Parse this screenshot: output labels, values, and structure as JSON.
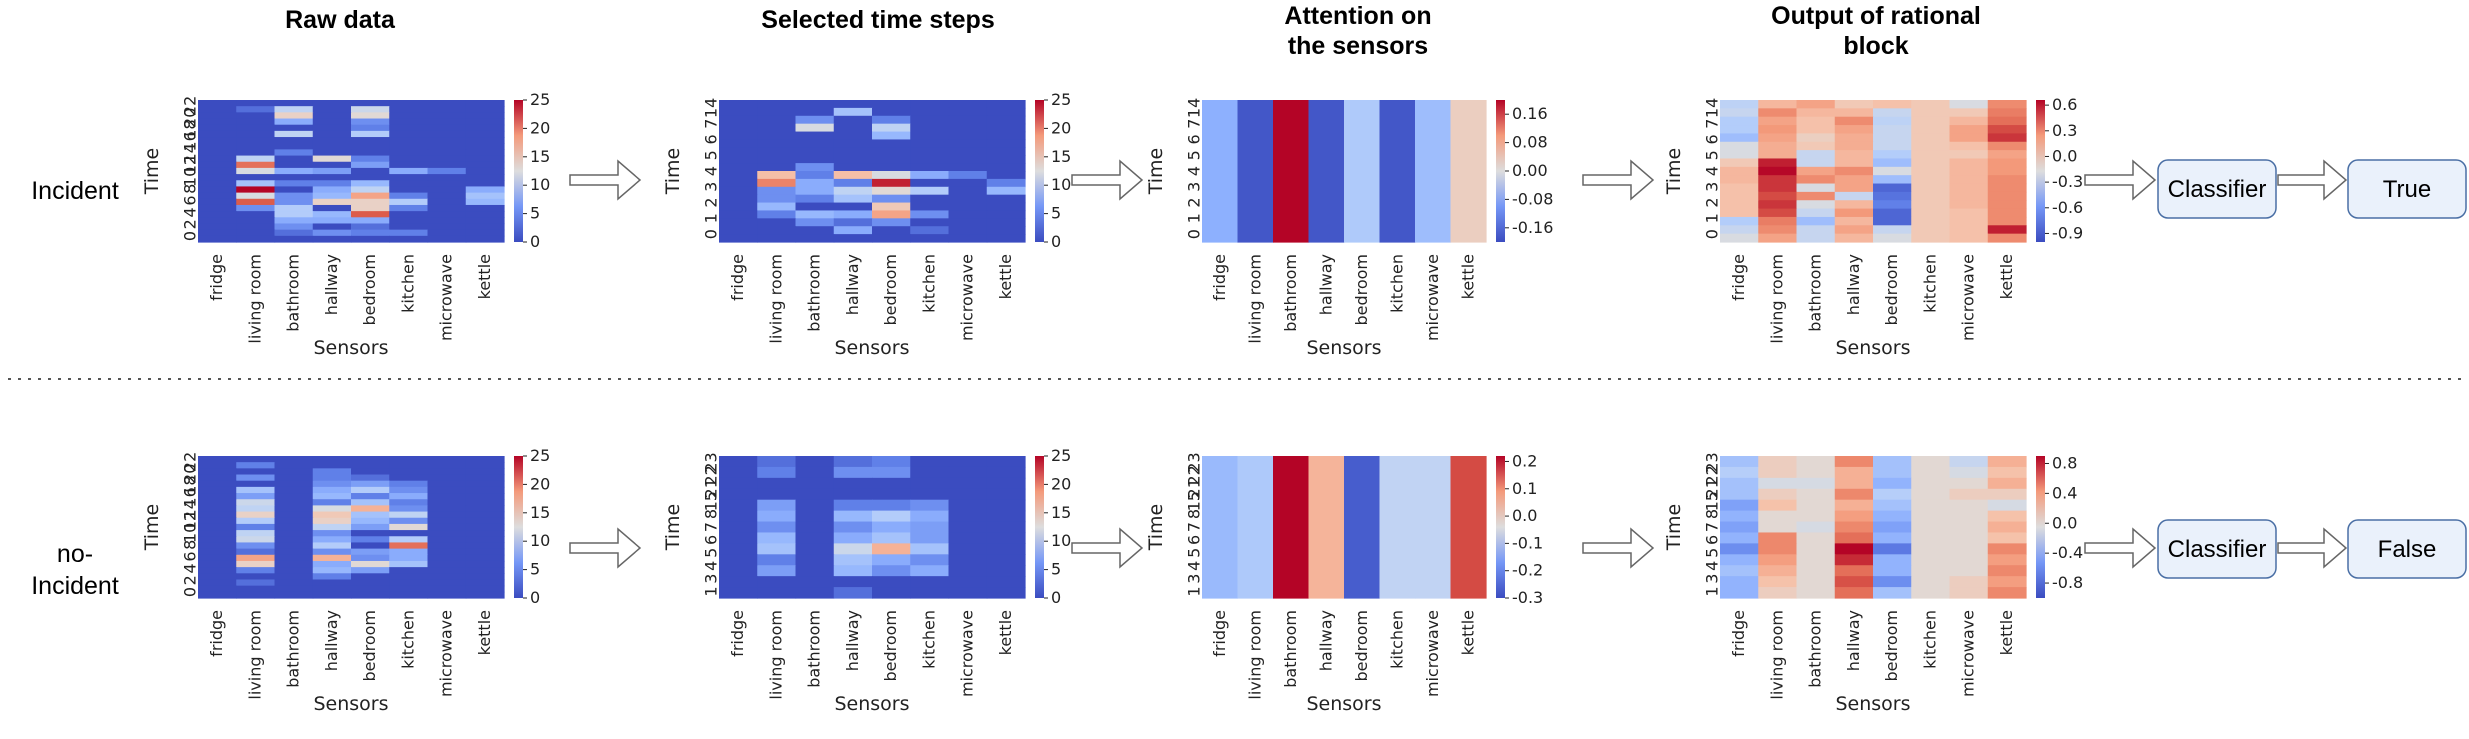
{
  "columns": {
    "raw": "Raw data",
    "selected": "Selected time steps",
    "attention": "Attention on the sensors",
    "output": "Output of rational block"
  },
  "rows": [
    {
      "label": "Incident",
      "result": "True"
    },
    {
      "label": "no-Incident",
      "result": "False"
    }
  ],
  "classifier_label": "Classifier",
  "sensors": [
    "fridge",
    "living room",
    "bathroom",
    "hallway",
    "bedroom",
    "kitchen",
    "microwave",
    "kettle"
  ],
  "x_axis_label": "Sensors",
  "y_axis_label": "Time",
  "colormap": {
    "name": "coolwarm",
    "low": "#3b4cc0",
    "mid": "#dddddd",
    "high": "#b40426"
  },
  "arrow_color": "#666666",
  "box_fill": "#eaf1fb",
  "box_stroke": "#4a6fa5",
  "divider_color": "#555555",
  "chart_data": [
    {
      "id": "inc-raw",
      "type": "heatmap",
      "vmin": 0,
      "vmax": 25,
      "yticks": [
        "0",
        "2",
        "4",
        "6",
        "8",
        "10",
        "12",
        "14",
        "16",
        "18",
        "20",
        "22"
      ],
      "cbar_ticks": [
        "0",
        "5",
        "10",
        "15",
        "20",
        "25"
      ],
      "values": [
        [
          0,
          0,
          0,
          0,
          0,
          0,
          0,
          0
        ],
        [
          0,
          2,
          10,
          0,
          11,
          0,
          0,
          0
        ],
        [
          0,
          0,
          14,
          0,
          13,
          0,
          0,
          0
        ],
        [
          0,
          0,
          6,
          0,
          4,
          0,
          0,
          0
        ],
        [
          0,
          0,
          0,
          0,
          3,
          0,
          0,
          0
        ],
        [
          0,
          0,
          10,
          0,
          9,
          0,
          0,
          0
        ],
        [
          0,
          0,
          0,
          0,
          0,
          0,
          0,
          0
        ],
        [
          0,
          0,
          0,
          0,
          0,
          0,
          0,
          0
        ],
        [
          0,
          0,
          3,
          0,
          0,
          0,
          0,
          0
        ],
        [
          0,
          10,
          0,
          13,
          3,
          0,
          0,
          0
        ],
        [
          0,
          21,
          0,
          0,
          5,
          0,
          0,
          0
        ],
        [
          0,
          12,
          6,
          5,
          0,
          6,
          3,
          0
        ],
        [
          0,
          0,
          0,
          0,
          0,
          0,
          0,
          0
        ],
        [
          0,
          8,
          3,
          3,
          7,
          0,
          0,
          0
        ],
        [
          0,
          25,
          0,
          6,
          10,
          0,
          0,
          6
        ],
        [
          0,
          12,
          4,
          7,
          18,
          3,
          0,
          8
        ],
        [
          0,
          22,
          4,
          14,
          14,
          9,
          0,
          7
        ],
        [
          0,
          4,
          9,
          0,
          14,
          3,
          0,
          0
        ],
        [
          0,
          0,
          9,
          7,
          22,
          0,
          0,
          0
        ],
        [
          0,
          0,
          6,
          6,
          6,
          0,
          0,
          0
        ],
        [
          0,
          0,
          4,
          0,
          2,
          0,
          0,
          0
        ],
        [
          0,
          0,
          2,
          4,
          3,
          3,
          0,
          0
        ],
        [
          0,
          0,
          0,
          0,
          0,
          0,
          0,
          0
        ]
      ]
    },
    {
      "id": "inc-sel",
      "type": "heatmap",
      "vmin": 0,
      "vmax": 25,
      "yticks": [
        "0",
        "1",
        "2",
        "3",
        "4",
        "5",
        "6",
        "7",
        "14"
      ],
      "cbar_ticks": [
        "0",
        "5",
        "10",
        "15",
        "20",
        "25"
      ],
      "values": [
        [
          0,
          0,
          0,
          0,
          0,
          0,
          0,
          0
        ],
        [
          0,
          0,
          0,
          8,
          0,
          0,
          0,
          0
        ],
        [
          0,
          0,
          4,
          0,
          3,
          0,
          0,
          0
        ],
        [
          0,
          0,
          12,
          0,
          10,
          0,
          0,
          0
        ],
        [
          0,
          0,
          0,
          0,
          7,
          0,
          0,
          0
        ],
        [
          0,
          0,
          0,
          0,
          0,
          0,
          0,
          0
        ],
        [
          0,
          0,
          0,
          0,
          0,
          0,
          0,
          0
        ],
        [
          0,
          0,
          0,
          0,
          0,
          0,
          0,
          0
        ],
        [
          0,
          0,
          4,
          0,
          0,
          0,
          0,
          0
        ],
        [
          0,
          16,
          3,
          16,
          12,
          6,
          3,
          0
        ],
        [
          0,
          20,
          6,
          3,
          24,
          0,
          0,
          3
        ],
        [
          0,
          4,
          6,
          10,
          13,
          9,
          0,
          7
        ],
        [
          0,
          4,
          3,
          8,
          4,
          0,
          0,
          0
        ],
        [
          0,
          7,
          0,
          0,
          15,
          0,
          0,
          0
        ],
        [
          0,
          3,
          7,
          6,
          18,
          4,
          0,
          0
        ],
        [
          0,
          0,
          4,
          2,
          4,
          0,
          0,
          0
        ],
        [
          0,
          0,
          0,
          6,
          0,
          2,
          0,
          0
        ],
        [
          0,
          0,
          0,
          0,
          0,
          0,
          0,
          0
        ]
      ]
    },
    {
      "id": "inc-att",
      "type": "heatmap",
      "vmin": -0.2,
      "vmax": 0.2,
      "yticks": [
        "0",
        "1",
        "2",
        "3",
        "4",
        "5",
        "6",
        "7",
        "14"
      ],
      "cbar_ticks": [
        "0.16",
        "0.08",
        "0.00",
        "-0.08",
        "-0.16"
      ],
      "cbar_tick_values": [
        0.16,
        0.08,
        0.0,
        -0.08,
        -0.16
      ],
      "values": [
        [
          -0.1,
          -0.19,
          0.2,
          -0.19,
          -0.06,
          -0.19,
          -0.08,
          0.03
        ]
      ]
    },
    {
      "id": "inc-out",
      "type": "heatmap",
      "vmin": -1.0,
      "vmax": 0.66,
      "yticks": [
        "0",
        "1",
        "2",
        "3",
        "4",
        "5",
        "6",
        "7",
        "14"
      ],
      "cbar_ticks": [
        "0.6",
        "0.3",
        "0.0",
        "-0.3",
        "-0.6",
        "-0.9"
      ],
      "cbar_tick_values": [
        0.6,
        0.3,
        0.0,
        -0.3,
        -0.6,
        -0.9
      ],
      "values": [
        [
          -0.35,
          0.1,
          0.2,
          0.0,
          0.05,
          0.0,
          -0.2,
          0.3
        ],
        [
          -0.3,
          0.3,
          0.1,
          0.1,
          -0.3,
          0.0,
          0.0,
          0.35
        ],
        [
          -0.4,
          0.2,
          0.05,
          0.3,
          -0.35,
          0.0,
          0.1,
          0.4
        ],
        [
          -0.4,
          0.25,
          0.05,
          0.2,
          -0.3,
          0.0,
          0.2,
          0.5
        ],
        [
          -0.5,
          0.2,
          -0.05,
          0.15,
          -0.3,
          0.0,
          0.2,
          0.55
        ],
        [
          -0.2,
          0.15,
          0.0,
          0.15,
          -0.3,
          0.0,
          0.05,
          0.3
        ],
        [
          -0.2,
          0.15,
          -0.3,
          0.1,
          -0.4,
          0.0,
          0.0,
          0.2
        ],
        [
          0.0,
          0.6,
          -0.3,
          0.1,
          -0.5,
          0.0,
          0.1,
          0.25
        ],
        [
          0.1,
          0.65,
          0.2,
          0.3,
          -0.2,
          0.0,
          0.1,
          0.25
        ],
        [
          0.1,
          0.55,
          0.3,
          0.2,
          -0.5,
          0.0,
          0.1,
          0.3
        ],
        [
          0.05,
          0.55,
          -0.2,
          0.2,
          -0.9,
          0.0,
          0.1,
          0.3
        ],
        [
          0.05,
          0.5,
          0.3,
          -0.3,
          -0.85,
          0.0,
          0.1,
          0.3
        ],
        [
          0.05,
          0.55,
          -0.2,
          0.1,
          -0.8,
          0.0,
          0.1,
          0.3
        ],
        [
          0.05,
          0.5,
          -0.3,
          0.25,
          -0.9,
          0.0,
          0.05,
          0.3
        ],
        [
          -0.4,
          0.35,
          -0.5,
          0.1,
          -0.9,
          0.0,
          0.05,
          0.3
        ],
        [
          -0.3,
          0.3,
          -0.3,
          0.2,
          -0.3,
          0.0,
          0.05,
          0.6
        ],
        [
          -0.2,
          0.2,
          -0.3,
          0.1,
          -0.2,
          0.0,
          0.05,
          0.3
        ]
      ]
    },
    {
      "id": "noinc-raw",
      "type": "heatmap",
      "vmin": 0,
      "vmax": 25,
      "yticks": [
        "0",
        "2",
        "4",
        "6",
        "8",
        "10",
        "12",
        "14",
        "16",
        "18",
        "20",
        "22"
      ],
      "cbar_ticks": [
        "0",
        "5",
        "10",
        "15",
        "20",
        "25"
      ],
      "values": [
        [
          0,
          0,
          0,
          0,
          0,
          0,
          0,
          0
        ],
        [
          0,
          3,
          0,
          0,
          0,
          0,
          0,
          0
        ],
        [
          0,
          0,
          0,
          3,
          0,
          0,
          0,
          0
        ],
        [
          0,
          4,
          0,
          3,
          2,
          0,
          0,
          0
        ],
        [
          0,
          0,
          0,
          4,
          5,
          3,
          0,
          0
        ],
        [
          0,
          8,
          0,
          6,
          9,
          4,
          0,
          0
        ],
        [
          0,
          5,
          0,
          7,
          3,
          6,
          0,
          0
        ],
        [
          0,
          11,
          0,
          3,
          8,
          3,
          0,
          0
        ],
        [
          0,
          10,
          0,
          12,
          17,
          4,
          0,
          0
        ],
        [
          0,
          14,
          0,
          15,
          8,
          10,
          0,
          0
        ],
        [
          0,
          9,
          0,
          14,
          7,
          4,
          0,
          0
        ],
        [
          0,
          3,
          0,
          10,
          5,
          13,
          0,
          0
        ],
        [
          0,
          10,
          0,
          4,
          0,
          0,
          0,
          0
        ],
        [
          0,
          11,
          0,
          6,
          3,
          9,
          0,
          0
        ],
        [
          0,
          4,
          0,
          9,
          0,
          21,
          0,
          0
        ],
        [
          0,
          2,
          0,
          4,
          5,
          6,
          0,
          0
        ],
        [
          0,
          18,
          0,
          17,
          4,
          6,
          0,
          0
        ],
        [
          0,
          14,
          0,
          6,
          13,
          8,
          0,
          0
        ],
        [
          0,
          3,
          0,
          7,
          5,
          0,
          0,
          0
        ],
        [
          0,
          0,
          0,
          3,
          0,
          0,
          0,
          0
        ],
        [
          0,
          2,
          0,
          0,
          0,
          0,
          0,
          0
        ],
        [
          0,
          0,
          0,
          0,
          0,
          0,
          0,
          0
        ],
        [
          0,
          0,
          0,
          0,
          0,
          0,
          0,
          0
        ]
      ]
    },
    {
      "id": "noinc-sel",
      "type": "heatmap",
      "vmin": 0,
      "vmax": 25,
      "yticks": [
        "1",
        "3",
        "4",
        "5",
        "6",
        "7",
        "8",
        "15",
        "21",
        "22",
        "23"
      ],
      "cbar_ticks": [
        "0",
        "5",
        "10",
        "15",
        "20",
        "25"
      ],
      "values": [
        [
          0,
          2,
          0,
          2,
          3,
          0,
          0,
          0
        ],
        [
          0,
          3,
          0,
          4,
          4,
          0,
          0,
          0
        ],
        [
          0,
          0,
          0,
          0,
          0,
          0,
          0,
          0
        ],
        [
          0,
          0,
          0,
          0,
          0,
          0,
          0,
          0
        ],
        [
          0,
          5,
          0,
          3,
          3,
          4,
          0,
          0
        ],
        [
          0,
          6,
          0,
          7,
          9,
          6,
          0,
          0
        ],
        [
          0,
          4,
          0,
          4,
          6,
          5,
          0,
          0
        ],
        [
          0,
          7,
          0,
          6,
          8,
          5,
          0,
          0
        ],
        [
          0,
          8,
          0,
          11,
          17,
          8,
          0,
          0
        ],
        [
          0,
          3,
          0,
          8,
          6,
          4,
          0,
          0
        ],
        [
          0,
          5,
          0,
          7,
          4,
          6,
          0,
          0
        ],
        [
          0,
          0,
          0,
          0,
          0,
          0,
          0,
          0
        ],
        [
          0,
          0,
          0,
          2,
          0,
          0,
          0,
          0
        ]
      ]
    },
    {
      "id": "noinc-att",
      "type": "heatmap",
      "vmin": -0.3,
      "vmax": 0.22,
      "yticks": [
        "1",
        "3",
        "4",
        "5",
        "6",
        "7",
        "8",
        "15",
        "21",
        "22",
        "23"
      ],
      "cbar_ticks": [
        "0.2",
        "0.1",
        "0.0",
        "-0.1",
        "-0.2",
        "-0.3"
      ],
      "cbar_tick_values": [
        0.2,
        0.1,
        0.0,
        -0.1,
        -0.2,
        -0.3
      ],
      "values": [
        [
          -0.15,
          -0.12,
          0.22,
          0.05,
          -0.28,
          -0.09,
          -0.09,
          0.17
        ]
      ]
    },
    {
      "id": "noinc-out",
      "type": "heatmap",
      "vmin": -1.0,
      "vmax": 0.9,
      "yticks": [
        "1",
        "3",
        "4",
        "5",
        "6",
        "7",
        "8",
        "15",
        "21",
        "22",
        "23"
      ],
      "cbar_ticks": [
        "0.8",
        "0.4",
        "0.0",
        "-0.4",
        "-0.8"
      ],
      "cbar_tick_values": [
        0.8,
        0.4,
        0.0,
        -0.4,
        -0.8
      ],
      "values": [
        [
          -0.4,
          0.1,
          0.0,
          0.5,
          -0.4,
          0.0,
          -0.2,
          0.3
        ],
        [
          -0.3,
          0.1,
          0.0,
          0.3,
          -0.4,
          0.0,
          -0.1,
          0.2
        ],
        [
          -0.4,
          -0.1,
          -0.1,
          0.3,
          -0.5,
          0.0,
          0.0,
          0.3
        ],
        [
          -0.4,
          0.1,
          0.0,
          0.5,
          -0.3,
          0.0,
          0.1,
          0.1
        ],
        [
          -0.6,
          0.2,
          0.0,
          0.3,
          -0.4,
          0.0,
          0.0,
          -0.1
        ],
        [
          -0.5,
          0.0,
          0.0,
          0.4,
          -0.5,
          0.0,
          0.0,
          0.2
        ],
        [
          -0.6,
          0.0,
          -0.1,
          0.5,
          -0.6,
          0.0,
          0.0,
          0.3
        ],
        [
          -0.5,
          0.5,
          0.0,
          0.6,
          -0.5,
          0.0,
          0.0,
          0.2
        ],
        [
          -0.7,
          0.5,
          0.0,
          0.9,
          -0.8,
          0.0,
          0.0,
          0.5
        ],
        [
          -0.5,
          0.4,
          0.0,
          0.8,
          -0.5,
          0.0,
          0.0,
          0.4
        ],
        [
          -0.4,
          0.3,
          0.0,
          0.6,
          -0.5,
          0.0,
          0.0,
          0.5
        ],
        [
          -0.5,
          0.2,
          0.0,
          0.7,
          -0.7,
          0.0,
          0.1,
          0.4
        ],
        [
          -0.5,
          0.1,
          0.0,
          0.6,
          -0.4,
          0.0,
          0.1,
          0.5
        ]
      ]
    }
  ]
}
